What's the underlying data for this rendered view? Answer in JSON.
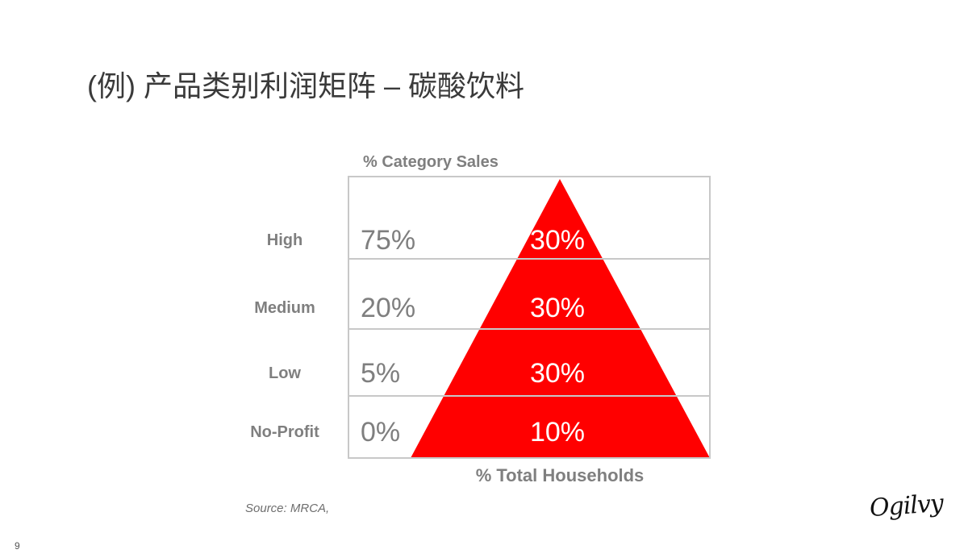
{
  "title": "(例) 产品类别利润矩阵 – 碳酸饮料",
  "chart_data": {
    "type": "table",
    "y_axis_title": "% Category Sales",
    "x_axis_title": "% Total Households",
    "rows": [
      {
        "label": "High",
        "category_sales": "75%",
        "households": "30%"
      },
      {
        "label": "Medium",
        "category_sales": "20%",
        "households": "30%"
      },
      {
        "label": "Low",
        "category_sales": "5%",
        "households": "30%"
      },
      {
        "label": "No-Profit",
        "category_sales": "0%",
        "households": "10%"
      }
    ],
    "pyramid_color": "#ff0000"
  },
  "source": "Source: MRCA,",
  "page_number": "9",
  "logo": "Ogilvy"
}
